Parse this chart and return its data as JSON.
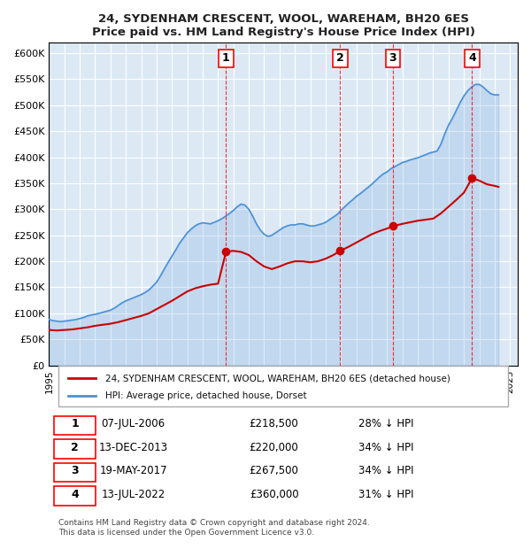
{
  "title1": "24, SYDENHAM CRESCENT, WOOL, WAREHAM, BH20 6ES",
  "title2": "Price paid vs. HM Land Registry's House Price Index (HPI)",
  "ylabel_ticks": [
    "£0",
    "£50K",
    "£100K",
    "£150K",
    "£200K",
    "£250K",
    "£300K",
    "£350K",
    "£400K",
    "£450K",
    "£500K",
    "£550K",
    "£600K"
  ],
  "ytick_values": [
    0,
    50000,
    100000,
    150000,
    200000,
    250000,
    300000,
    350000,
    400000,
    450000,
    500000,
    550000,
    600000
  ],
  "xlim_start": 1995.0,
  "xlim_end": 2025.5,
  "ylim_top": 620000,
  "background_color": "#dce9f5",
  "plot_bg": "#dce9f5",
  "hpi_color": "#4a90d9",
  "sale_color": "#cc0000",
  "sale_marker_color": "#cc0000",
  "grid_color": "#ffffff",
  "sale_points": [
    {
      "date_year": 2006.52,
      "price": 218500,
      "label": "1"
    },
    {
      "date_year": 2013.95,
      "price": 220000,
      "label": "2"
    },
    {
      "date_year": 2017.38,
      "price": 267500,
      "label": "3"
    },
    {
      "date_year": 2022.53,
      "price": 360000,
      "label": "4"
    }
  ],
  "transactions": [
    {
      "num": "1",
      "date": "07-JUL-2006",
      "price": "£218,500",
      "pct": "28% ↓ HPI"
    },
    {
      "num": "2",
      "date": "13-DEC-2013",
      "price": "£220,000",
      "pct": "34% ↓ HPI"
    },
    {
      "num": "3",
      "date": "19-MAY-2017",
      "price": "£267,500",
      "pct": "34% ↓ HPI"
    },
    {
      "num": "4",
      "date": "13-JUL-2022",
      "price": "£360,000",
      "pct": "31% ↓ HPI"
    }
  ],
  "legend_sale_label": "24, SYDENHAM CRESCENT, WOOL, WAREHAM, BH20 6ES (detached house)",
  "legend_hpi_label": "HPI: Average price, detached house, Dorset",
  "footer1": "Contains HM Land Registry data © Crown copyright and database right 2024.",
  "footer2": "This data is licensed under the Open Government Licence v3.0.",
  "hpi_data_x": [
    1995.0,
    1995.25,
    1995.5,
    1995.75,
    1996.0,
    1996.25,
    1996.5,
    1996.75,
    1997.0,
    1997.25,
    1997.5,
    1997.75,
    1998.0,
    1998.25,
    1998.5,
    1998.75,
    1999.0,
    1999.25,
    1999.5,
    1999.75,
    2000.0,
    2000.25,
    2000.5,
    2000.75,
    2001.0,
    2001.25,
    2001.5,
    2001.75,
    2002.0,
    2002.25,
    2002.5,
    2002.75,
    2003.0,
    2003.25,
    2003.5,
    2003.75,
    2004.0,
    2004.25,
    2004.5,
    2004.75,
    2005.0,
    2005.25,
    2005.5,
    2005.75,
    2006.0,
    2006.25,
    2006.5,
    2006.75,
    2007.0,
    2007.25,
    2007.5,
    2007.75,
    2008.0,
    2008.25,
    2008.5,
    2008.75,
    2009.0,
    2009.25,
    2009.5,
    2009.75,
    2010.0,
    2010.25,
    2010.5,
    2010.75,
    2011.0,
    2011.25,
    2011.5,
    2011.75,
    2012.0,
    2012.25,
    2012.5,
    2012.75,
    2013.0,
    2013.25,
    2013.5,
    2013.75,
    2014.0,
    2014.25,
    2014.5,
    2014.75,
    2015.0,
    2015.25,
    2015.5,
    2015.75,
    2016.0,
    2016.25,
    2016.5,
    2016.75,
    2017.0,
    2017.25,
    2017.5,
    2017.75,
    2018.0,
    2018.25,
    2018.5,
    2018.75,
    2019.0,
    2019.25,
    2019.5,
    2019.75,
    2020.0,
    2020.25,
    2020.5,
    2020.75,
    2021.0,
    2021.25,
    2021.5,
    2021.75,
    2022.0,
    2022.25,
    2022.5,
    2022.75,
    2023.0,
    2023.25,
    2023.5,
    2023.75,
    2024.0,
    2024.25
  ],
  "hpi_data_y": [
    88000,
    86000,
    85000,
    84000,
    85000,
    86000,
    87000,
    88000,
    90000,
    92000,
    95000,
    97000,
    98000,
    100000,
    102000,
    104000,
    106000,
    110000,
    115000,
    120000,
    124000,
    127000,
    130000,
    133000,
    136000,
    140000,
    145000,
    152000,
    160000,
    172000,
    185000,
    198000,
    210000,
    222000,
    235000,
    245000,
    255000,
    262000,
    268000,
    272000,
    274000,
    273000,
    272000,
    275000,
    278000,
    282000,
    287000,
    292000,
    298000,
    305000,
    310000,
    308000,
    300000,
    287000,
    272000,
    260000,
    252000,
    248000,
    250000,
    255000,
    260000,
    265000,
    268000,
    270000,
    270000,
    272000,
    272000,
    270000,
    268000,
    268000,
    270000,
    272000,
    275000,
    280000,
    285000,
    290000,
    298000,
    305000,
    312000,
    318000,
    325000,
    330000,
    336000,
    342000,
    348000,
    355000,
    362000,
    368000,
    372000,
    378000,
    382000,
    386000,
    390000,
    392000,
    395000,
    397000,
    399000,
    402000,
    405000,
    408000,
    410000,
    412000,
    425000,
    445000,
    462000,
    475000,
    490000,
    505000,
    518000,
    528000,
    535000,
    540000,
    540000,
    535000,
    528000,
    522000,
    520000,
    520000
  ],
  "sale_line_x": [
    1995.0,
    1995.5,
    1996.0,
    1996.5,
    1997.0,
    1997.5,
    1998.0,
    1998.5,
    1999.0,
    1999.5,
    2000.0,
    2000.5,
    2001.0,
    2001.5,
    2002.0,
    2002.5,
    2003.0,
    2003.5,
    2004.0,
    2004.5,
    2005.0,
    2005.5,
    2006.0,
    2006.52,
    2007.0,
    2007.5,
    2008.0,
    2008.5,
    2009.0,
    2009.5,
    2010.0,
    2010.5,
    2011.0,
    2011.5,
    2012.0,
    2012.5,
    2013.0,
    2013.5,
    2013.95,
    2014.5,
    2015.0,
    2015.5,
    2016.0,
    2016.5,
    2017.0,
    2017.38,
    2018.0,
    2018.5,
    2019.0,
    2019.5,
    2020.0,
    2020.5,
    2021.0,
    2021.5,
    2022.0,
    2022.53,
    2023.0,
    2023.5,
    2024.0,
    2024.25
  ],
  "sale_line_y": [
    68000,
    67000,
    68000,
    69000,
    71000,
    73000,
    76000,
    78000,
    80000,
    83000,
    87000,
    91000,
    95000,
    100000,
    108000,
    116000,
    124000,
    133000,
    142000,
    148000,
    152000,
    155000,
    157000,
    218500,
    220000,
    218000,
    212000,
    200000,
    190000,
    185000,
    190000,
    196000,
    200000,
    200000,
    198000,
    200000,
    205000,
    212000,
    220000,
    228000,
    236000,
    244000,
    252000,
    258000,
    263000,
    267500,
    272000,
    275000,
    278000,
    280000,
    282000,
    292000,
    305000,
    318000,
    332000,
    360000,
    355000,
    348000,
    345000,
    343000
  ]
}
